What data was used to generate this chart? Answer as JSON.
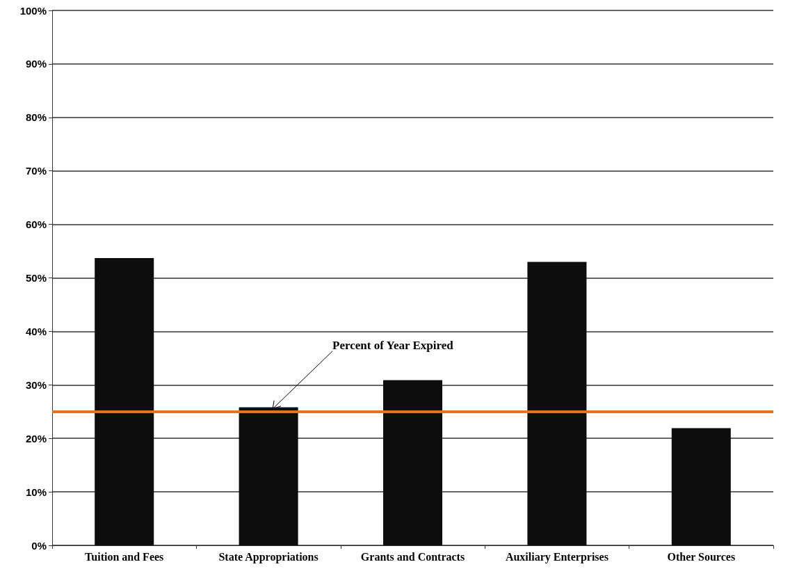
{
  "chart_data": {
    "type": "bar",
    "categories": [
      "Tuition and Fees",
      "State Appropriations",
      "Grants and Contracts",
      "Auxiliary Enterprises",
      "Other Sources"
    ],
    "values": [
      53.7,
      25.8,
      30.9,
      53.0,
      21.9
    ],
    "color": "#0d0d0d",
    "ylim": [
      0,
      100
    ],
    "yticks": [
      {
        "value": 0,
        "label": "0%"
      },
      {
        "value": 10,
        "label": "10%"
      },
      {
        "value": 20,
        "label": "20%"
      },
      {
        "value": 30,
        "label": "30%"
      },
      {
        "value": 40,
        "label": "40%"
      },
      {
        "value": 50,
        "label": "50%"
      },
      {
        "value": 60,
        "label": "60%"
      },
      {
        "value": 70,
        "label": "70%"
      },
      {
        "value": 80,
        "label": "80%"
      },
      {
        "value": 90,
        "label": "90%"
      },
      {
        "value": 100,
        "label": "100%"
      }
    ],
    "ref_lines": [
      {
        "axis": "y",
        "value": 25,
        "label": "Percent of Year Expired",
        "color": "#e8731a"
      }
    ],
    "grid": "y"
  }
}
